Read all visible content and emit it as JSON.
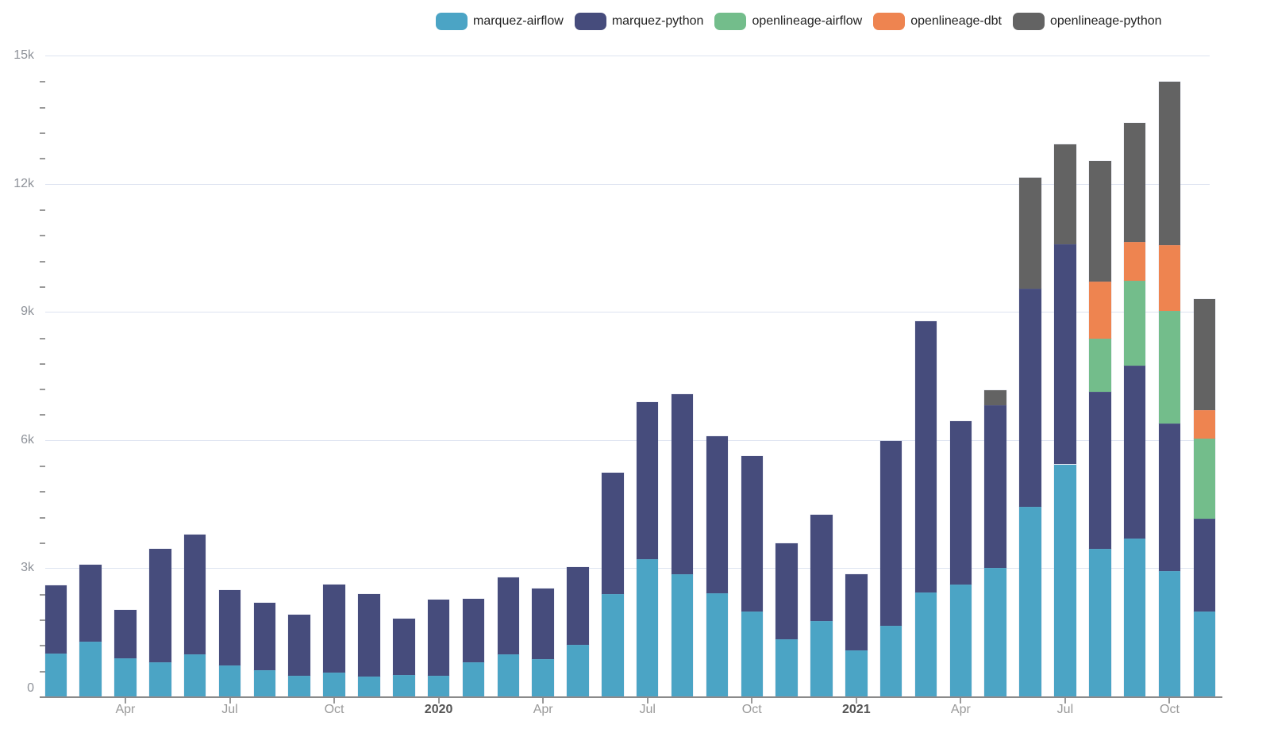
{
  "page": {
    "background": "#ffffff"
  },
  "legend": {
    "position": "top",
    "items": [
      {
        "label": "marquez-airflow",
        "color": "#4BA4C5"
      },
      {
        "label": "marquez-python",
        "color": "#464C7C"
      },
      {
        "label": "openlineage-airflow",
        "color": "#73BD8B"
      },
      {
        "label": "openlineage-dbt",
        "color": "#EE8450"
      },
      {
        "label": "openlineage-python",
        "color": "#636363"
      }
    ]
  },
  "chart_data": {
    "type": "bar",
    "stacked": true,
    "title": "",
    "xlabel": "",
    "ylabel": "",
    "ylim": [
      0,
      15000
    ],
    "grid": true,
    "legend_position": "top",
    "y_major_ticks": [
      {
        "value": 0,
        "label": "0"
      },
      {
        "value": 3000,
        "label": "3k"
      },
      {
        "value": 6000,
        "label": "6k"
      },
      {
        "value": 9000,
        "label": "9k"
      },
      {
        "value": 12000,
        "label": "12k"
      },
      {
        "value": 15000,
        "label": "15k"
      }
    ],
    "y_minor_tick_interval": 600,
    "categories": [
      "2019-02",
      "2019-03",
      "2019-04",
      "2019-05",
      "2019-06",
      "2019-07",
      "2019-08",
      "2019-09",
      "2019-10",
      "2019-11",
      "2019-12",
      "2020-01",
      "2020-02",
      "2020-03",
      "2020-04",
      "2020-05",
      "2020-06",
      "2020-07",
      "2020-08",
      "2020-09",
      "2020-10",
      "2020-11",
      "2020-12",
      "2021-01",
      "2021-02",
      "2021-03",
      "2021-04",
      "2021-05",
      "2021-06",
      "2021-07",
      "2021-08",
      "2021-09",
      "2021-10",
      "2021-11"
    ],
    "x_tick_labels": [
      {
        "category": "2019-04",
        "label": "Apr",
        "bold": false
      },
      {
        "category": "2019-07",
        "label": "Jul",
        "bold": false
      },
      {
        "category": "2019-10",
        "label": "Oct",
        "bold": false
      },
      {
        "category": "2020-01",
        "label": "2020",
        "bold": true
      },
      {
        "category": "2020-04",
        "label": "Apr",
        "bold": false
      },
      {
        "category": "2020-07",
        "label": "Jul",
        "bold": false
      },
      {
        "category": "2020-10",
        "label": "Oct",
        "bold": false
      },
      {
        "category": "2021-01",
        "label": "2021",
        "bold": true
      },
      {
        "category": "2021-04",
        "label": "Apr",
        "bold": false
      },
      {
        "category": "2021-07",
        "label": "Jul",
        "bold": false
      },
      {
        "category": "2021-10",
        "label": "Oct",
        "bold": false
      }
    ],
    "series": [
      {
        "name": "marquez-airflow",
        "color": "#4BA4C5",
        "values": [
          1010,
          1290,
          890,
          790,
          980,
          720,
          620,
          480,
          550,
          460,
          500,
          490,
          790,
          980,
          880,
          1210,
          2400,
          3210,
          2860,
          2420,
          1990,
          1340,
          1770,
          1080,
          1660,
          2440,
          2610,
          3000,
          4430,
          5430,
          3450,
          3700,
          2930,
          1990
        ]
      },
      {
        "name": "marquez-python",
        "color": "#464C7C",
        "values": [
          1580,
          1800,
          1130,
          2660,
          2800,
          1760,
          1570,
          1430,
          2060,
          1940,
          1320,
          1780,
          1500,
          1800,
          1650,
          1810,
          2840,
          3670,
          4220,
          3660,
          3640,
          2240,
          2490,
          1780,
          4310,
          6350,
          3840,
          3810,
          5120,
          5150,
          3670,
          4040,
          3460,
          2170
        ]
      },
      {
        "name": "openlineage-airflow",
        "color": "#73BD8B",
        "values": [
          0,
          0,
          0,
          0,
          0,
          0,
          0,
          0,
          0,
          0,
          0,
          0,
          0,
          0,
          0,
          0,
          0,
          0,
          0,
          0,
          0,
          0,
          0,
          0,
          0,
          0,
          0,
          0,
          0,
          0,
          1250,
          1980,
          2630,
          1870
        ]
      },
      {
        "name": "openlineage-dbt",
        "color": "#EE8450",
        "values": [
          0,
          0,
          0,
          0,
          0,
          0,
          0,
          0,
          0,
          0,
          0,
          0,
          0,
          0,
          0,
          0,
          0,
          0,
          0,
          0,
          0,
          0,
          0,
          0,
          0,
          0,
          0,
          0,
          0,
          0,
          1330,
          920,
          1540,
          680
        ]
      },
      {
        "name": "openlineage-python",
        "color": "#636363",
        "values": [
          0,
          0,
          0,
          0,
          0,
          0,
          0,
          0,
          0,
          0,
          0,
          0,
          0,
          0,
          0,
          0,
          0,
          0,
          0,
          0,
          0,
          0,
          0,
          0,
          0,
          0,
          0,
          350,
          2600,
          2340,
          2840,
          2790,
          3830,
          2600
        ]
      }
    ]
  }
}
